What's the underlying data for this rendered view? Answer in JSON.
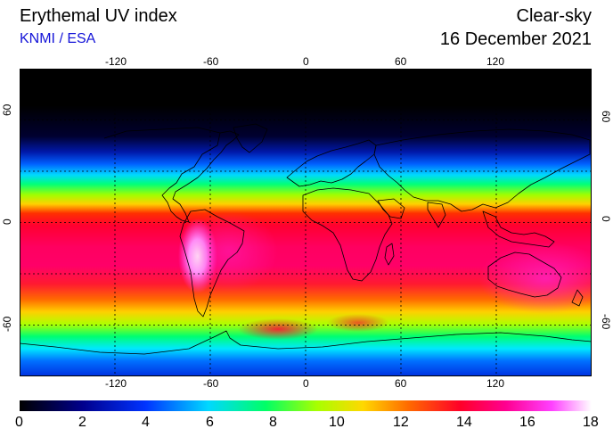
{
  "header": {
    "title": "Erythemal UV index",
    "source": "KNMI / ESA",
    "condition": "Clear-sky",
    "date": "16 December 2021"
  },
  "map": {
    "projection": "equirectangular",
    "lon_range": [
      -180,
      180
    ],
    "lat_range": [
      -90,
      90
    ],
    "top_lon_labels": [
      "-120",
      "-60",
      "0",
      "60",
      "120"
    ],
    "bottom_lon_labels": [
      "-120",
      "-60",
      "0",
      "60",
      "120"
    ],
    "left_lat_labels": [
      "60",
      "0",
      "-60"
    ],
    "right_lat_labels": [
      "60",
      "0",
      "-60"
    ],
    "grid": true,
    "grid_style": "dotted"
  },
  "colorbar": {
    "min": 0,
    "max": 18,
    "labels": [
      "0",
      "2",
      "4",
      "6",
      "8",
      "10",
      "12",
      "14",
      "16",
      "18"
    ],
    "colors": [
      "#000000",
      "#00008c",
      "#0033ff",
      "#00d8ff",
      "#00ff66",
      "#a8ff00",
      "#ffd800",
      "#ff6a00",
      "#ff0028",
      "#ff0090",
      "#ff40ff",
      "#ffffff"
    ]
  }
}
